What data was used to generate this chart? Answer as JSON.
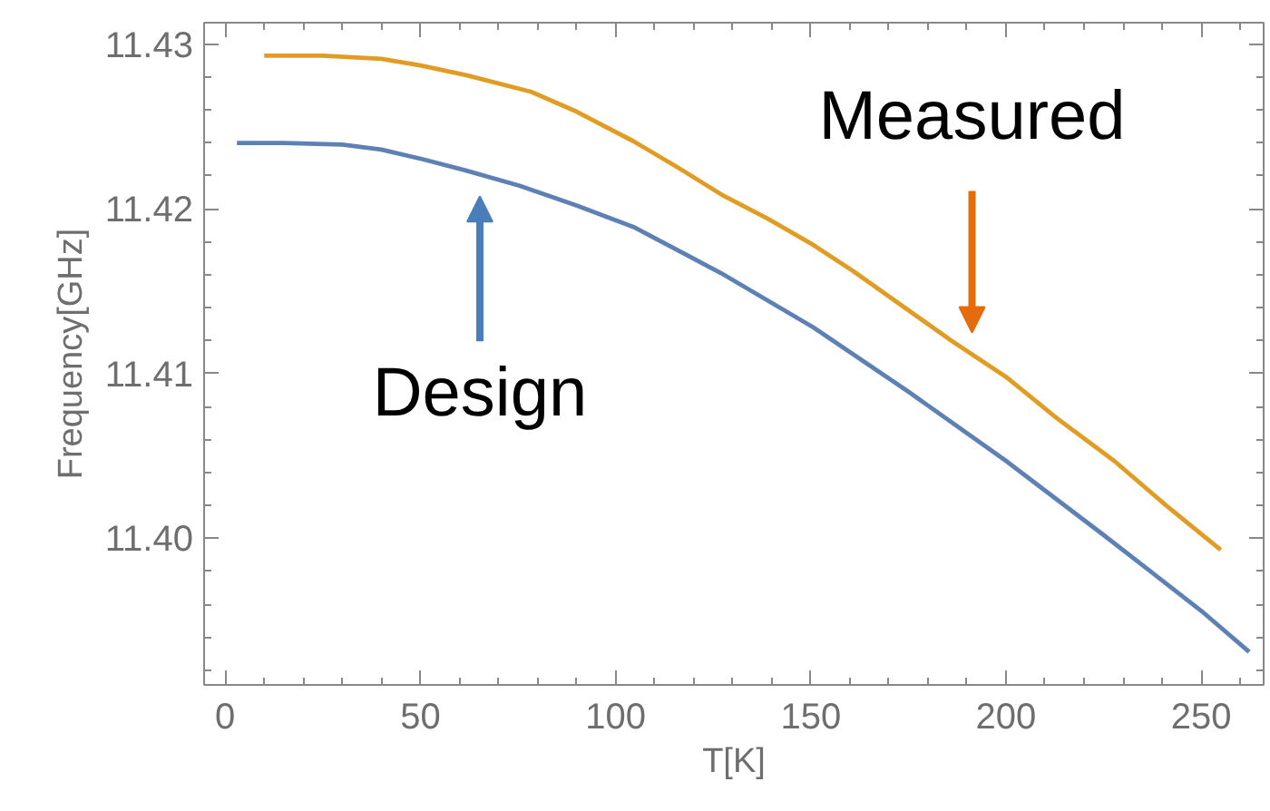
{
  "chart_data": {
    "type": "line",
    "xlabel": "T[K]",
    "ylabel": "Frequency[GHz]",
    "xlim": [
      -5.4,
      266
    ],
    "ylim": [
      11.3911,
      11.4313
    ],
    "xticks": [
      0,
      50,
      100,
      150,
      200,
      250
    ],
    "yticks": [
      {
        "value": 11.4,
        "label": "11.40"
      },
      11.41,
      11.42,
      11.43
    ],
    "grid": false,
    "marker": "none",
    "line_style": "solid",
    "series": [
      {
        "name": "Design",
        "color": "#5e81b5",
        "x": [
          3,
          15,
          30,
          40,
          50.8,
          62,
          75.4,
          90,
          104.6,
          127,
          150.7,
          175,
          200,
          225,
          250,
          262.3
        ],
        "values": [
          11.424,
          11.424,
          11.4239,
          11.4236,
          11.423,
          11.4223,
          11.4214,
          11.4202,
          11.4189,
          11.4161,
          11.4128,
          11.4089,
          11.4047,
          11.4002,
          11.3956,
          11.3931
        ]
      },
      {
        "name": "Measured",
        "color": "#e19c24",
        "x": [
          10,
          25,
          40,
          50,
          62,
          78.4,
          90,
          104.6,
          116,
          127.6,
          139,
          150,
          161,
          172.3,
          186,
          200,
          213,
          227.7,
          241,
          255
        ],
        "values": [
          11.4293,
          11.4293,
          11.4291,
          11.4287,
          11.4281,
          11.4271,
          11.4259,
          11.4241,
          11.4225,
          11.4208,
          11.4194,
          11.4179,
          11.4162,
          11.4143,
          11.412,
          11.4098,
          11.4073,
          11.4047,
          11.402,
          11.3993
        ]
      }
    ]
  }
}
